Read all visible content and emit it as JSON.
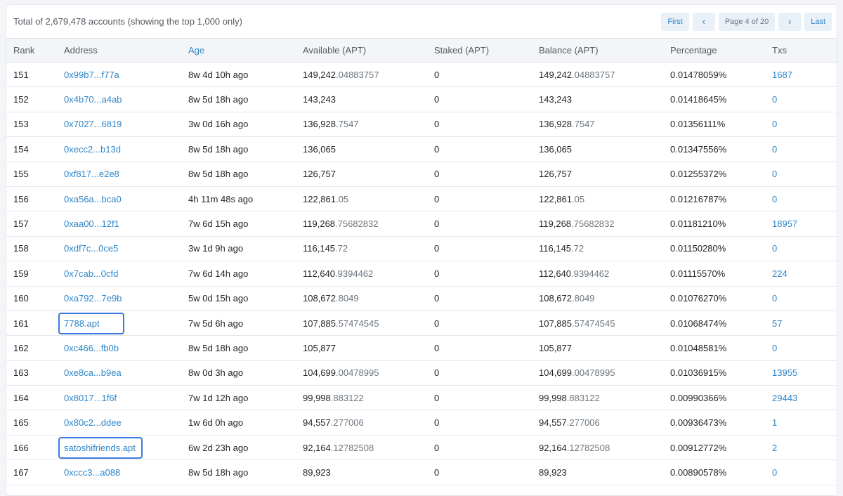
{
  "header": {
    "total_text": "Total of 2,679,478 accounts (showing the top 1,000 only)"
  },
  "pagination": {
    "first": "First",
    "prev": "‹",
    "page_info": "Page 4 of 20",
    "next": "›",
    "last": "Last"
  },
  "columns": [
    "Rank",
    "Address",
    "Age",
    "Available (APT)",
    "Staked (APT)",
    "Balance (APT)",
    "Percentage",
    "Txs"
  ],
  "rows": [
    {
      "rank": "151",
      "address": "0x99b7...f77a",
      "age": "8w 4d 10h ago",
      "available_int": "149,242",
      "available_dec": ".04883757",
      "staked": "0",
      "balance_int": "149,242",
      "balance_dec": ".04883757",
      "percentage": "0.01478059%",
      "txs": "1687"
    },
    {
      "rank": "152",
      "address": "0x4b70...a4ab",
      "age": "8w 5d 18h ago",
      "available_int": "143,243",
      "available_dec": "",
      "staked": "0",
      "balance_int": "143,243",
      "balance_dec": "",
      "percentage": "0.01418645%",
      "txs": "0"
    },
    {
      "rank": "153",
      "address": "0x7027...6819",
      "age": "3w 0d 16h ago",
      "available_int": "136,928",
      "available_dec": ".7547",
      "staked": "0",
      "balance_int": "136,928",
      "balance_dec": ".7547",
      "percentage": "0.01356111%",
      "txs": "0"
    },
    {
      "rank": "154",
      "address": "0xecc2...b13d",
      "age": "8w 5d 18h ago",
      "available_int": "136,065",
      "available_dec": "",
      "staked": "0",
      "balance_int": "136,065",
      "balance_dec": "",
      "percentage": "0.01347556%",
      "txs": "0"
    },
    {
      "rank": "155",
      "address": "0xf817...e2e8",
      "age": "8w 5d 18h ago",
      "available_int": "126,757",
      "available_dec": "",
      "staked": "0",
      "balance_int": "126,757",
      "balance_dec": "",
      "percentage": "0.01255372%",
      "txs": "0"
    },
    {
      "rank": "156",
      "address": "0xa56a...bca0",
      "age": "4h 11m 48s ago",
      "available_int": "122,861",
      "available_dec": ".05",
      "staked": "0",
      "balance_int": "122,861",
      "balance_dec": ".05",
      "percentage": "0.01216787%",
      "txs": "0"
    },
    {
      "rank": "157",
      "address": "0xaa00...12f1",
      "age": "7w 6d 15h ago",
      "available_int": "119,268",
      "available_dec": ".75682832",
      "staked": "0",
      "balance_int": "119,268",
      "balance_dec": ".75682832",
      "percentage": "0.01181210%",
      "txs": "18957"
    },
    {
      "rank": "158",
      "address": "0xdf7c...0ce5",
      "age": "3w 1d 9h ago",
      "available_int": "116,145",
      "available_dec": ".72",
      "staked": "0",
      "balance_int": "116,145",
      "balance_dec": ".72",
      "percentage": "0.01150280%",
      "txs": "0"
    },
    {
      "rank": "159",
      "address": "0x7cab...0cfd",
      "age": "7w 6d 14h ago",
      "available_int": "112,640",
      "available_dec": ".9394462",
      "staked": "0",
      "balance_int": "112,640",
      "balance_dec": ".9394462",
      "percentage": "0.01115570%",
      "txs": "224"
    },
    {
      "rank": "160",
      "address": "0xa792...7e9b",
      "age": "5w 0d 15h ago",
      "available_int": "108,672",
      "available_dec": ".8049",
      "staked": "0",
      "balance_int": "108,672",
      "balance_dec": ".8049",
      "percentage": "0.01076270%",
      "txs": "0"
    },
    {
      "rank": "161",
      "address": "7788.apt",
      "age": "7w 5d 6h ago",
      "available_int": "107,885",
      "available_dec": ".57474545",
      "staked": "0",
      "balance_int": "107,885",
      "balance_dec": ".57474545",
      "percentage": "0.01068474%",
      "txs": "57",
      "highlight": "w1"
    },
    {
      "rank": "162",
      "address": "0xc466...fb0b",
      "age": "8w 5d 18h ago",
      "available_int": "105,877",
      "available_dec": "",
      "staked": "0",
      "balance_int": "105,877",
      "balance_dec": "",
      "percentage": "0.01048581%",
      "txs": "0"
    },
    {
      "rank": "163",
      "address": "0xe8ca...b9ea",
      "age": "8w 0d 3h ago",
      "available_int": "104,699",
      "available_dec": ".00478995",
      "staked": "0",
      "balance_int": "104,699",
      "balance_dec": ".00478995",
      "percentage": "0.01036915%",
      "txs": "13955"
    },
    {
      "rank": "164",
      "address": "0x8017...1f6f",
      "age": "7w 1d 12h ago",
      "available_int": "99,998",
      "available_dec": ".883122",
      "staked": "0",
      "balance_int": "99,998",
      "balance_dec": ".883122",
      "percentage": "0.00990366%",
      "txs": "29443"
    },
    {
      "rank": "165",
      "address": "0x80c2...ddee",
      "age": "1w 6d 0h ago",
      "available_int": "94,557",
      "available_dec": ".277006",
      "staked": "0",
      "balance_int": "94,557",
      "balance_dec": ".277006",
      "percentage": "0.00936473%",
      "txs": "1"
    },
    {
      "rank": "166",
      "address": "satoshifriends.apt",
      "age": "6w 2d 23h ago",
      "available_int": "92,164",
      "available_dec": ".12782508",
      "staked": "0",
      "balance_int": "92,164",
      "balance_dec": ".12782508",
      "percentage": "0.00912772%",
      "txs": "2",
      "highlight": "w2"
    },
    {
      "rank": "167",
      "address": "0xccc3...a088",
      "age": "8w 5d 18h ago",
      "available_int": "89,923",
      "available_dec": "",
      "staked": "0",
      "balance_int": "89,923",
      "balance_dec": "",
      "percentage": "0.00890578%",
      "txs": "0"
    }
  ],
  "colors": {
    "link": "#2f86c8",
    "highlight_box": "#3b7be0",
    "header_bg": "#f3f5f7",
    "decimal_text": "#6c757d"
  }
}
